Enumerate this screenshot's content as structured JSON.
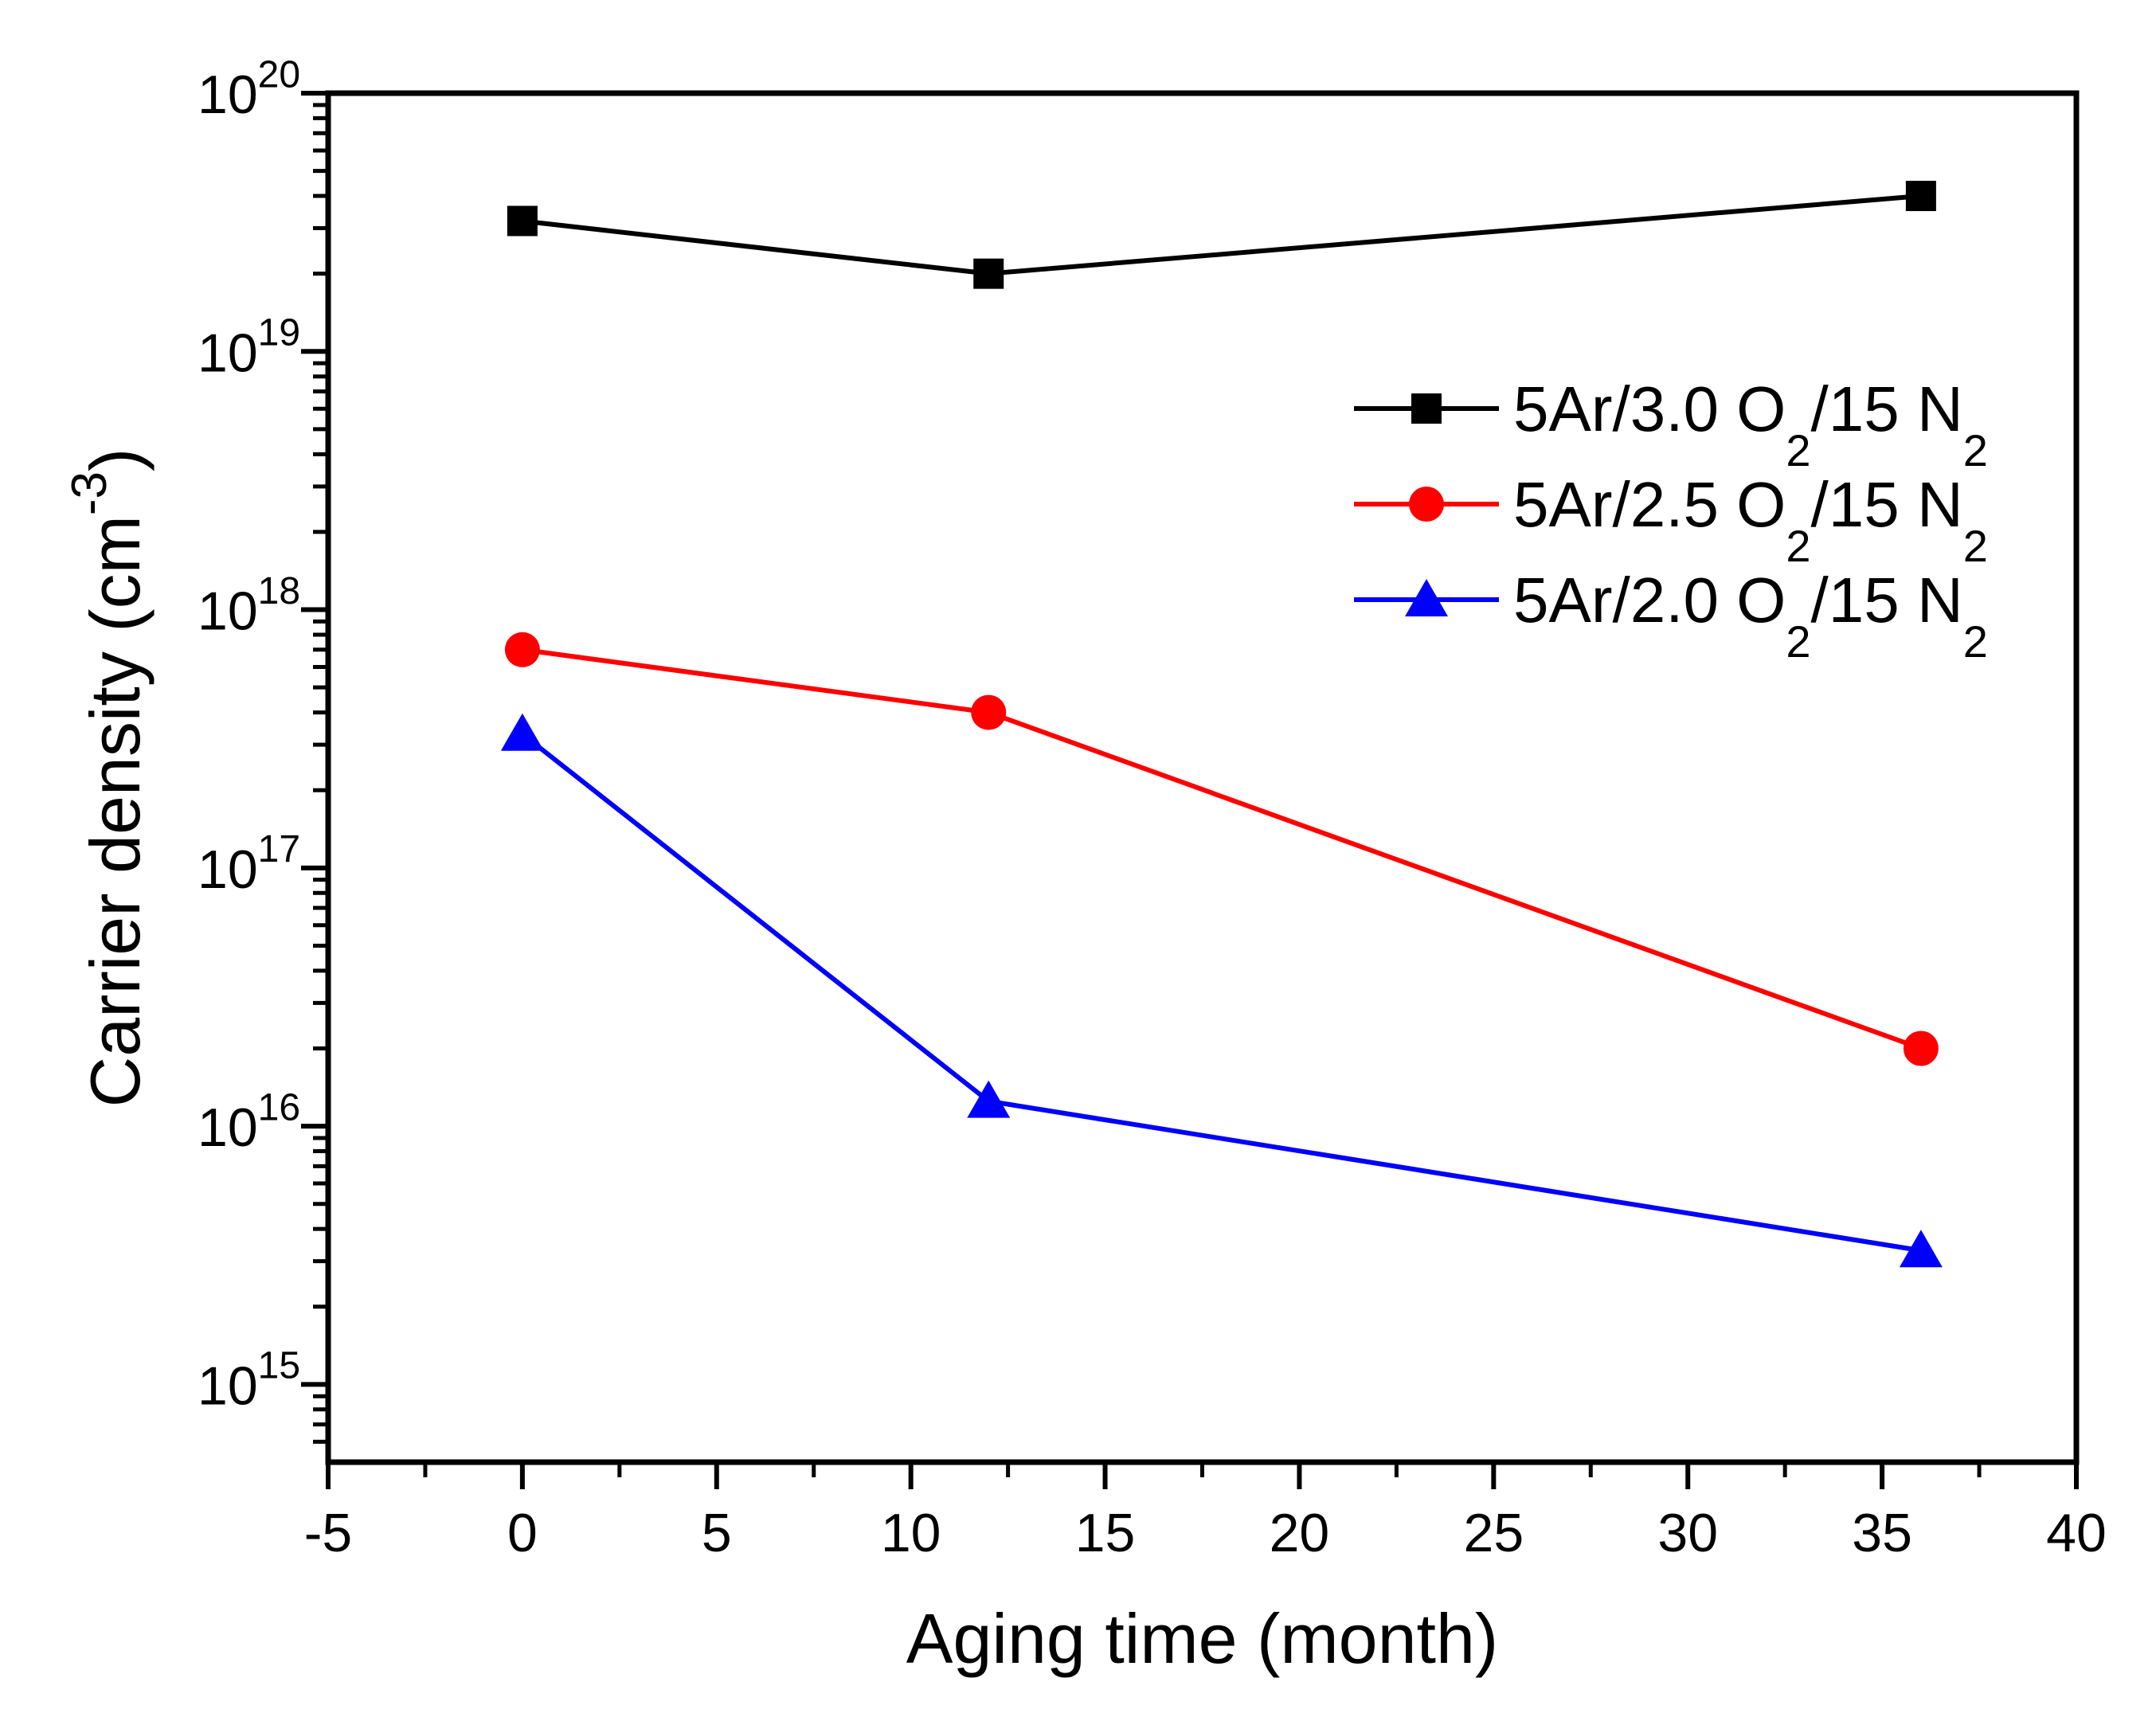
{
  "figure": {
    "background_color": "#ffffff",
    "frame_color": "#000000"
  },
  "chart_data": {
    "type": "line",
    "title": "",
    "xlabel": "Aging time (month)",
    "ylabel": "Carrier density (cm^-3^)",
    "ylabel_plain": "Carrier density (cm-3)",
    "x_scale": "linear",
    "y_scale": "log",
    "xlim": [
      -5,
      40
    ],
    "ylim": [
      500000000000000.0,
      1e+20
    ],
    "x_major_ticks": [
      -5,
      0,
      5,
      10,
      15,
      20,
      25,
      30,
      35,
      40
    ],
    "x_tick_labels": [
      "-5",
      "0",
      "5",
      "10",
      "15",
      "20",
      "25",
      "30",
      "35",
      "40"
    ],
    "x_minor_step": 2.5,
    "y_major_tick_exponents": [
      15,
      16,
      17,
      18,
      19,
      20
    ],
    "y_tick_labels": [
      "10^15^",
      "10^16^",
      "10^17^",
      "10^18^",
      "10^19^",
      "10^20^"
    ],
    "grid": false,
    "legend_position": "upper right",
    "series": [
      {
        "label": "5Ar/3.0 O2/15 N2",
        "label_rich": "5Ar/3.0 O_2_/15 N_2_",
        "color": "#000000",
        "marker": "square",
        "x": [
          0,
          12,
          36
        ],
        "y": [
          3.2e+19,
          2e+19,
          4e+19
        ]
      },
      {
        "label": "5Ar/2.5 O2/15 N2",
        "label_rich": "5Ar/2.5 O_2_/15 N_2_",
        "color": "#ff0000",
        "marker": "circle",
        "x": [
          0,
          12,
          36
        ],
        "y": [
          7e+17,
          4e+17,
          2e+16
        ]
      },
      {
        "label": "5Ar/2.0 O2/15 N2",
        "label_rich": "5Ar/2.0 O_2_/15 N_2_",
        "color": "#0000ff",
        "marker": "triangle",
        "x": [
          0,
          12,
          36
        ],
        "y": [
          3.3e+17,
          1.25e+16,
          3300000000000000.0
        ]
      }
    ]
  }
}
